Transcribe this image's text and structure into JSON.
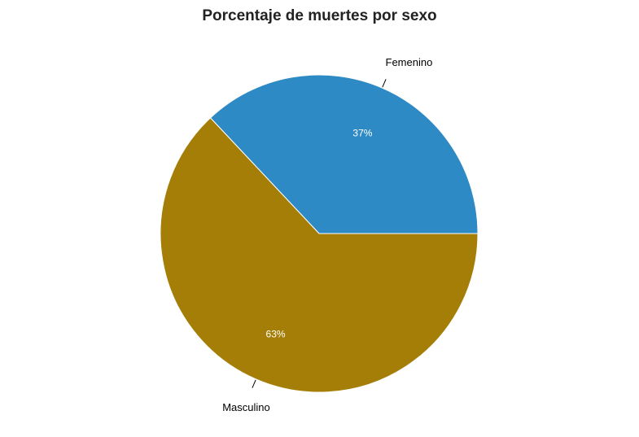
{
  "chart_data": {
    "type": "pie",
    "title": "Porcentaje de muertes por sexo",
    "categories": [
      "Femenino",
      "Masculino"
    ],
    "values": [
      37,
      63
    ],
    "value_labels": [
      "37%",
      "63%"
    ],
    "colors": [
      "#2E8AC4",
      "#A57E07"
    ],
    "start": "east",
    "direction": "counterclockwise",
    "legend": "none"
  }
}
